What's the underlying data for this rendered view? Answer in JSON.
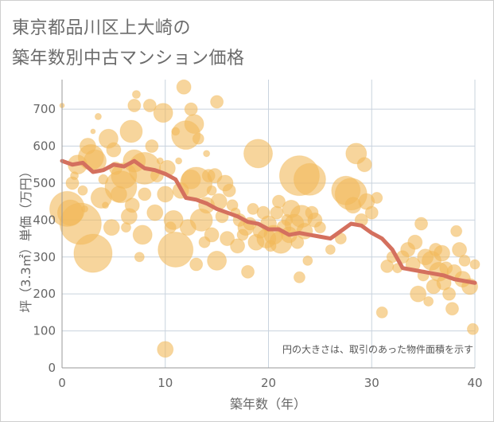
{
  "title": {
    "line1": "東京都品川区上大崎の",
    "line2": "築年数別中古マンション価格"
  },
  "colors": {
    "bubble_fill": "#f1b95a",
    "bubble_opacity": 0.6,
    "trend_line": "#d4705e",
    "grid": "#c9d3de",
    "axis": "#999999",
    "text": "#666666"
  },
  "chart_data": {
    "type": "scatter",
    "title": "東京都品川区上大崎の築年数別中古マンション価格",
    "xlabel": "築年数（年）",
    "ylabel": "坪（3.3㎡）単価（万円）",
    "xlim": [
      0,
      40
    ],
    "ylim": [
      0,
      780
    ],
    "x_ticks": [
      0,
      10,
      20,
      30,
      40
    ],
    "y_ticks": [
      0,
      100,
      200,
      300,
      400,
      500,
      600,
      700
    ],
    "grid": true,
    "annotation": "円の大きさは、取引のあった物件面積を示す",
    "series": [
      {
        "type": "bubble",
        "points": [
          [
            0,
            710,
            3
          ],
          [
            0.5,
            430,
            22
          ],
          [
            0.8,
            420,
            16
          ],
          [
            1,
            500,
            8
          ],
          [
            1.2,
            520,
            5
          ],
          [
            1.5,
            550,
            12
          ],
          [
            1.8,
            390,
            26
          ],
          [
            2,
            480,
            6
          ],
          [
            2.2,
            430,
            4
          ],
          [
            2.5,
            600,
            10
          ],
          [
            2.8,
            570,
            16
          ],
          [
            3,
            310,
            24
          ],
          [
            3,
            640,
            3
          ],
          [
            3.2,
            560,
            14
          ],
          [
            3.5,
            680,
            4
          ],
          [
            3.8,
            460,
            13
          ],
          [
            4,
            510,
            6
          ],
          [
            4.2,
            440,
            4
          ],
          [
            4.5,
            620,
            12
          ],
          [
            4.8,
            380,
            10
          ],
          [
            5,
            590,
            9
          ],
          [
            5.2,
            540,
            8
          ],
          [
            5.5,
            470,
            10
          ],
          [
            5.7,
            490,
            20
          ],
          [
            6,
            520,
            16
          ],
          [
            6.2,
            380,
            6
          ],
          [
            6.5,
            410,
            10
          ],
          [
            6.7,
            640,
            14
          ],
          [
            6.8,
            440,
            9
          ],
          [
            7,
            560,
            14
          ],
          [
            7,
            710,
            8
          ],
          [
            7.2,
            740,
            5
          ],
          [
            7.5,
            300,
            6
          ],
          [
            7.8,
            360,
            12
          ],
          [
            8,
            470,
            8
          ],
          [
            8,
            540,
            20
          ],
          [
            8.5,
            710,
            8
          ],
          [
            8.7,
            600,
            8
          ],
          [
            9,
            420,
            10
          ],
          [
            9.2,
            520,
            8
          ],
          [
            9.5,
            560,
            4
          ],
          [
            9.8,
            690,
            12
          ],
          [
            10,
            470,
            10
          ],
          [
            10,
            50,
            10
          ],
          [
            10.2,
            540,
            10
          ],
          [
            10.5,
            380,
            7
          ],
          [
            10.8,
            400,
            12
          ],
          [
            11,
            640,
            5
          ],
          [
            11,
            320,
            22
          ],
          [
            11.3,
            560,
            4
          ],
          [
            11.5,
            480,
            10
          ],
          [
            11.8,
            760,
            9
          ],
          [
            12,
            630,
            18
          ],
          [
            12.2,
            380,
            10
          ],
          [
            12.5,
            700,
            8
          ],
          [
            12.5,
            510,
            12
          ],
          [
            12.8,
            660,
            12
          ],
          [
            13,
            500,
            20
          ],
          [
            13,
            280,
            8
          ],
          [
            13.2,
            620,
            7
          ],
          [
            13.5,
            400,
            14
          ],
          [
            13.8,
            340,
            7
          ],
          [
            14,
            580,
            4
          ],
          [
            14,
            440,
            10
          ],
          [
            14.2,
            520,
            8
          ],
          [
            14.5,
            480,
            6
          ],
          [
            14.5,
            360,
            9
          ],
          [
            14.8,
            520,
            9
          ],
          [
            15,
            290,
            12
          ],
          [
            15,
            720,
            8
          ],
          [
            15.2,
            450,
            10
          ],
          [
            15.5,
            410,
            8
          ],
          [
            15.8,
            500,
            10
          ],
          [
            16,
            350,
            9
          ],
          [
            16.2,
            480,
            8
          ],
          [
            16.5,
            440,
            7
          ],
          [
            16.8,
            420,
            6
          ],
          [
            17,
            330,
            9
          ],
          [
            17.2,
            400,
            8
          ],
          [
            17.5,
            360,
            7
          ],
          [
            17.8,
            380,
            10
          ],
          [
            18,
            260,
            8
          ],
          [
            18.2,
            390,
            8
          ],
          [
            18.5,
            430,
            7
          ],
          [
            18.8,
            340,
            10
          ],
          [
            19,
            580,
            18
          ],
          [
            19.2,
            370,
            9
          ],
          [
            19.5,
            420,
            8
          ],
          [
            19.8,
            350,
            12
          ],
          [
            20,
            390,
            10
          ],
          [
            20.2,
            330,
            7
          ],
          [
            20.5,
            360,
            12
          ],
          [
            20.8,
            420,
            8
          ],
          [
            21,
            450,
            8
          ],
          [
            21.2,
            340,
            14
          ],
          [
            21.5,
            380,
            9
          ],
          [
            21.8,
            400,
            7
          ],
          [
            22,
            360,
            10
          ],
          [
            22.2,
            430,
            11
          ],
          [
            22.5,
            390,
            12
          ],
          [
            22.8,
            340,
            8
          ],
          [
            23,
            520,
            25
          ],
          [
            23,
            245,
            7
          ],
          [
            23.2,
            410,
            14
          ],
          [
            23.5,
            370,
            10
          ],
          [
            23.8,
            290,
            6
          ],
          [
            24,
            510,
            20
          ],
          [
            24.2,
            420,
            8
          ],
          [
            24.5,
            400,
            9
          ],
          [
            25,
            380,
            7
          ],
          [
            26,
            320,
            6
          ],
          [
            27,
            350,
            7
          ],
          [
            27.5,
            480,
            18
          ],
          [
            28,
            470,
            20
          ],
          [
            28.2,
            440,
            10
          ],
          [
            28.5,
            580,
            13
          ],
          [
            29,
            400,
            8
          ],
          [
            29.3,
            550,
            9
          ],
          [
            29.5,
            450,
            10
          ],
          [
            30,
            420,
            8
          ],
          [
            30.5,
            460,
            7
          ],
          [
            31,
            150,
            7
          ],
          [
            31.5,
            275,
            8
          ],
          [
            32,
            300,
            7
          ],
          [
            32.5,
            270,
            6
          ],
          [
            33,
            300,
            8
          ],
          [
            33.5,
            320,
            9
          ],
          [
            34,
            280,
            9
          ],
          [
            34.2,
            340,
            9
          ],
          [
            34.5,
            200,
            10
          ],
          [
            34.8,
            390,
            8
          ],
          [
            35,
            250,
            7
          ],
          [
            35.2,
            300,
            10
          ],
          [
            35.5,
            180,
            6
          ],
          [
            35.8,
            290,
            12
          ],
          [
            36,
            220,
            9
          ],
          [
            36.2,
            320,
            8
          ],
          [
            36.5,
            260,
            12
          ],
          [
            36.8,
            310,
            10
          ],
          [
            37,
            230,
            9
          ],
          [
            37.2,
            270,
            8
          ],
          [
            37.5,
            200,
            8
          ],
          [
            37.8,
            160,
            8
          ],
          [
            38,
            260,
            9
          ],
          [
            38.2,
            370,
            7
          ],
          [
            38.5,
            320,
            9
          ],
          [
            38.8,
            240,
            10
          ],
          [
            39,
            290,
            7
          ],
          [
            39.5,
            220,
            10
          ],
          [
            39.8,
            105,
            7
          ],
          [
            40,
            280,
            6
          ]
        ]
      },
      {
        "type": "line",
        "x": [
          0,
          1,
          2,
          3,
          4,
          5,
          6,
          7,
          8,
          9,
          10,
          11,
          12,
          13,
          14,
          15,
          16,
          17,
          18,
          19,
          20,
          21,
          22,
          23,
          24,
          25,
          26,
          27,
          28,
          29,
          30,
          31,
          32,
          33,
          34,
          35,
          36,
          37,
          38,
          39,
          40
        ],
        "y": [
          560,
          550,
          555,
          530,
          535,
          550,
          545,
          560,
          540,
          535,
          525,
          510,
          460,
          455,
          445,
          430,
          420,
          410,
          395,
          390,
          375,
          375,
          360,
          365,
          360,
          355,
          350,
          370,
          390,
          385,
          365,
          350,
          320,
          270,
          265,
          260,
          255,
          250,
          240,
          235,
          230
        ]
      }
    ]
  }
}
